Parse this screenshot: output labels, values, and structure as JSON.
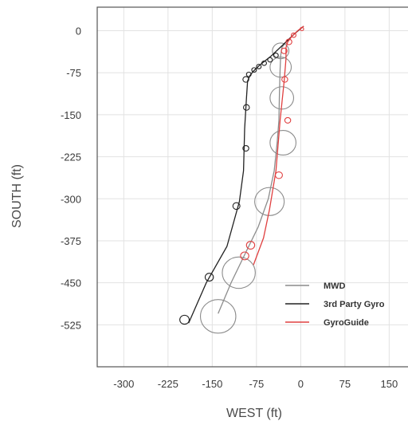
{
  "chart_data": {
    "type": "line",
    "title": "",
    "xlabel": "WEST (ft)",
    "ylabel": "SOUTH (ft)",
    "xlim": [
      -345,
      190
    ],
    "ylim": [
      -600,
      42
    ],
    "xticks": [
      -300,
      -225,
      -150,
      -75,
      0,
      75,
      150
    ],
    "yticks": [
      0,
      -75,
      -150,
      -225,
      -300,
      -375,
      -450,
      -525
    ],
    "grid": true,
    "legend_position": "bottom-right",
    "series": [
      {
        "name": "MWD",
        "color": "#8c8c8c",
        "x": [
          5,
          -5,
          -15,
          -25,
          -32,
          -34,
          -35,
          -36,
          -37,
          -40,
          -45,
          -55,
          -72,
          -95,
          -118,
          -140
        ],
        "y": [
          8,
          0,
          -10,
          -20,
          -30,
          -45,
          -70,
          -110,
          -160,
          -200,
          -250,
          -300,
          -350,
          -400,
          -450,
          -505
        ],
        "circles": [
          {
            "x": -34,
            "y": -36,
            "r": 14
          },
          {
            "x": -34,
            "y": -65,
            "r": 18
          },
          {
            "x": -32,
            "y": -120,
            "r": 20
          },
          {
            "x": -30,
            "y": -200,
            "r": 22
          },
          {
            "x": -53,
            "y": -305,
            "r": 25
          },
          {
            "x": -105,
            "y": -432,
            "r": 28
          },
          {
            "x": -140,
            "y": -510,
            "r": 30
          }
        ]
      },
      {
        "name": "3rd Party Gyro",
        "color": "#222222",
        "x": [
          5,
          -10,
          -30,
          -50,
          -68,
          -80,
          -86,
          -90,
          -92,
          -95,
          -97,
          -104,
          -125,
          -160,
          -190
        ],
        "y": [
          8,
          -5,
          -25,
          -45,
          -60,
          -72,
          -80,
          -90,
          -120,
          -175,
          -250,
          -305,
          -385,
          -450,
          -522
        ],
        "circles": [
          {
            "x": -42,
            "y": -44,
            "r": 4
          },
          {
            "x": -52,
            "y": -52,
            "r": 4
          },
          {
            "x": -62,
            "y": -58,
            "r": 4
          },
          {
            "x": -71,
            "y": -64,
            "r": 4
          },
          {
            "x": -79,
            "y": -70,
            "r": 4
          },
          {
            "x": -88,
            "y": -78,
            "r": 4
          },
          {
            "x": -93,
            "y": -87,
            "r": 5
          },
          {
            "x": -92,
            "y": -137,
            "r": 5
          },
          {
            "x": -93,
            "y": -210,
            "r": 5
          },
          {
            "x": -109,
            "y": -313,
            "r": 6
          },
          {
            "x": -155,
            "y": -440,
            "r": 7
          },
          {
            "x": -197,
            "y": -516,
            "r": 8
          }
        ]
      },
      {
        "name": "GyroGuide",
        "color": "#e04040",
        "x": [
          5,
          -5,
          -15,
          -22,
          -25,
          -25,
          -28,
          -35,
          -42,
          -53,
          -63,
          -80
        ],
        "y": [
          8,
          0,
          -10,
          -20,
          -30,
          -50,
          -90,
          -160,
          -250,
          -320,
          -370,
          -418
        ],
        "circles": [
          {
            "x": 2,
            "y": 3,
            "r": 3
          },
          {
            "x": -12,
            "y": -8,
            "r": 4
          },
          {
            "x": -20,
            "y": -20,
            "r": 5
          },
          {
            "x": -28,
            "y": -36,
            "r": 5
          },
          {
            "x": -27,
            "y": -87,
            "r": 5
          },
          {
            "x": -22,
            "y": -160,
            "r": 5
          },
          {
            "x": -37,
            "y": -258,
            "r": 6
          },
          {
            "x": -85,
            "y": -383,
            "r": 7
          },
          {
            "x": -95,
            "y": -402,
            "r": 7
          }
        ]
      }
    ]
  }
}
